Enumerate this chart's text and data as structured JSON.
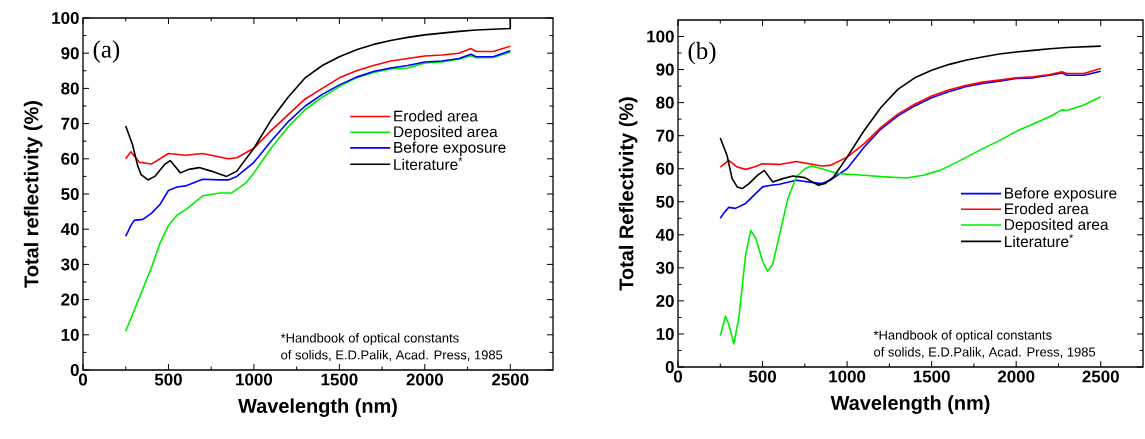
{
  "chart_data": [
    {
      "type": "line",
      "title": "(a)",
      "xlabel": "Wavelength (nm)",
      "ylabel": "Total reflectivity (%)",
      "xlim": [
        0,
        2750
      ],
      "ylim": [
        0,
        100
      ],
      "xticks": [
        0,
        500,
        1000,
        1500,
        2000,
        2500
      ],
      "yticks": [
        0,
        10,
        20,
        30,
        40,
        50,
        60,
        70,
        80,
        90,
        100
      ],
      "legend": "right",
      "annotations": [
        "*Handbook of optical constants",
        "of solids, E.D.Palik, Acad. Press, 1985"
      ],
      "series": [
        {
          "name": "Eroded area",
          "color": "#ff0000",
          "x": [
            250,
            280,
            330,
            400,
            500,
            600,
            700,
            800,
            850,
            900,
            1000,
            1100,
            1200,
            1300,
            1400,
            1500,
            1600,
            1700,
            1800,
            1900,
            2000,
            2100,
            2200,
            2270,
            2300,
            2400,
            2500
          ],
          "values": [
            60,
            62,
            59,
            58.5,
            61.5,
            61,
            61.5,
            60.5,
            60,
            60.3,
            63,
            68,
            72.5,
            77,
            80,
            83,
            85,
            86.5,
            87.8,
            88.5,
            89.2,
            89.5,
            90,
            91.3,
            90.5,
            90.5,
            92
          ]
        },
        {
          "name": "Deposited area",
          "color": "#00ee00",
          "x": [
            250,
            300,
            350,
            400,
            450,
            500,
            550,
            600,
            700,
            800,
            870,
            950,
            1000,
            1100,
            1200,
            1300,
            1400,
            1500,
            1600,
            1700,
            1800,
            1900,
            2000,
            2100,
            2200,
            2270,
            2300,
            2400,
            2500
          ],
          "values": [
            11,
            17,
            23,
            29,
            36,
            41,
            44,
            45.5,
            49.5,
            50.3,
            50.3,
            53,
            56,
            63,
            69,
            74,
            77.5,
            80.5,
            83,
            84.5,
            85.5,
            85.8,
            87.2,
            87.5,
            88.3,
            89.3,
            88.7,
            88.8,
            90.3
          ]
        },
        {
          "name": "Before exposure",
          "color": "#0000ff",
          "x": [
            250,
            280,
            300,
            350,
            400,
            450,
            500,
            550,
            600,
            700,
            800,
            850,
            900,
            1000,
            1100,
            1200,
            1300,
            1400,
            1500,
            1600,
            1700,
            1800,
            1900,
            2000,
            2100,
            2200,
            2270,
            2300,
            2400,
            2500
          ],
          "values": [
            38,
            41,
            42.5,
            42.8,
            44.5,
            47,
            51,
            52,
            52.3,
            54.2,
            54,
            54,
            55,
            59,
            65,
            70.5,
            75,
            78.3,
            81,
            83.2,
            84.8,
            85.8,
            86.5,
            87.5,
            87.8,
            88.5,
            89.7,
            89,
            89,
            90.7
          ]
        },
        {
          "name": "Literature$^{*}$",
          "color": "#000000",
          "x": [
            250,
            290,
            320,
            340,
            380,
            420,
            480,
            510,
            570,
            620,
            680,
            750,
            840,
            900,
            1000,
            1100,
            1200,
            1300,
            1400,
            1500,
            1600,
            1700,
            1800,
            1900,
            2000,
            2100,
            2200,
            2300,
            2400,
            2500,
            2500
          ],
          "values": [
            69.3,
            64,
            58,
            55.5,
            54,
            55,
            58.5,
            59.5,
            56,
            57,
            57.5,
            56.5,
            55,
            56.5,
            63,
            71,
            77.5,
            83,
            86.5,
            89,
            91,
            92.5,
            93.6,
            94.5,
            95.2,
            95.7,
            96.2,
            96.6,
            96.8,
            97,
            100
          ]
        }
      ]
    },
    {
      "type": "line",
      "title": "(b)",
      "xlabel": "Wavelength (nm)",
      "ylabel": "Total Reflectivity (%)",
      "xlim": [
        0,
        2750
      ],
      "ylim": [
        0,
        105
      ],
      "xticks": [
        0,
        500,
        1000,
        1500,
        2000,
        2500
      ],
      "yticks": [
        0,
        10,
        20,
        30,
        40,
        50,
        60,
        70,
        80,
        90,
        100
      ],
      "legend": "bottom right",
      "annotations": [
        "*Handbook of optical constants",
        "of solids, E.D.Palik, Acad. Press, 1985"
      ],
      "series": [
        {
          "name": "Before exposure",
          "color": "#0000ff",
          "x": [
            250,
            270,
            300,
            340,
            400,
            450,
            500,
            550,
            600,
            700,
            800,
            850,
            900,
            1000,
            1100,
            1200,
            1300,
            1400,
            1500,
            1600,
            1700,
            1800,
            1900,
            2000,
            2100,
            2200,
            2270,
            2300,
            2400,
            2500
          ],
          "values": [
            45,
            46.5,
            48.3,
            48,
            49.5,
            52,
            54.5,
            55,
            55.3,
            56.5,
            55.8,
            55.5,
            56.5,
            60,
            66.5,
            72,
            76,
            79,
            81.5,
            83.3,
            84.8,
            85.8,
            86.5,
            87.3,
            87.5,
            88.3,
            89,
            88.3,
            88.3,
            89.5
          ]
        },
        {
          "name": "Eroded area",
          "color": "#ff0000",
          "x": [
            250,
            300,
            350,
            400,
            450,
            500,
            600,
            700,
            800,
            850,
            900,
            1000,
            1100,
            1200,
            1300,
            1400,
            1500,
            1600,
            1700,
            1800,
            1900,
            2000,
            2100,
            2200,
            2270,
            2300,
            2400,
            2500
          ],
          "values": [
            60.5,
            62.5,
            60.5,
            59.8,
            60.5,
            61.5,
            61.3,
            62.2,
            61.3,
            60.8,
            61,
            63.5,
            67.5,
            72.5,
            76.5,
            79.5,
            82,
            83.8,
            85.2,
            86.2,
            86.8,
            87.5,
            87.8,
            88.5,
            89.3,
            88.8,
            88.8,
            90.3
          ]
        },
        {
          "name": "Deposited area",
          "color": "#00ee00",
          "x": [
            250,
            280,
            300,
            330,
            360,
            400,
            430,
            460,
            500,
            530,
            560,
            600,
            650,
            700,
            750,
            790,
            850,
            950,
            1100,
            1200,
            1350,
            1450,
            1550,
            1650,
            1800,
            1900,
            2000,
            2100,
            2200,
            2270,
            2300,
            2400,
            2500
          ],
          "values": [
            9.5,
            15.3,
            13,
            7,
            15,
            34,
            41.3,
            39,
            32,
            29,
            31,
            40,
            51,
            57.5,
            60,
            60.8,
            60,
            58.5,
            58,
            57.6,
            57.2,
            58,
            59.5,
            62,
            66,
            68.5,
            71.3,
            73.5,
            75.8,
            77.8,
            77.6,
            79.3,
            81.8
          ]
        },
        {
          "name": "Literature$^{*}$",
          "color": "#000000",
          "x": [
            250,
            290,
            320,
            350,
            380,
            420,
            470,
            510,
            560,
            620,
            680,
            750,
            830,
            870,
            920,
            1000,
            1100,
            1200,
            1300,
            1400,
            1500,
            1600,
            1700,
            1800,
            1900,
            2000,
            2100,
            2200,
            2300,
            2400,
            2500
          ],
          "values": [
            69.3,
            64,
            57,
            54.5,
            54,
            55.5,
            58,
            59.5,
            56,
            57,
            57.8,
            57.3,
            55,
            55.5,
            57.5,
            63.5,
            71.5,
            78.5,
            84,
            87.5,
            89.8,
            91.5,
            92.8,
            93.8,
            94.7,
            95.3,
            95.8,
            96.3,
            96.7,
            96.9,
            97.1
          ]
        }
      ]
    }
  ]
}
